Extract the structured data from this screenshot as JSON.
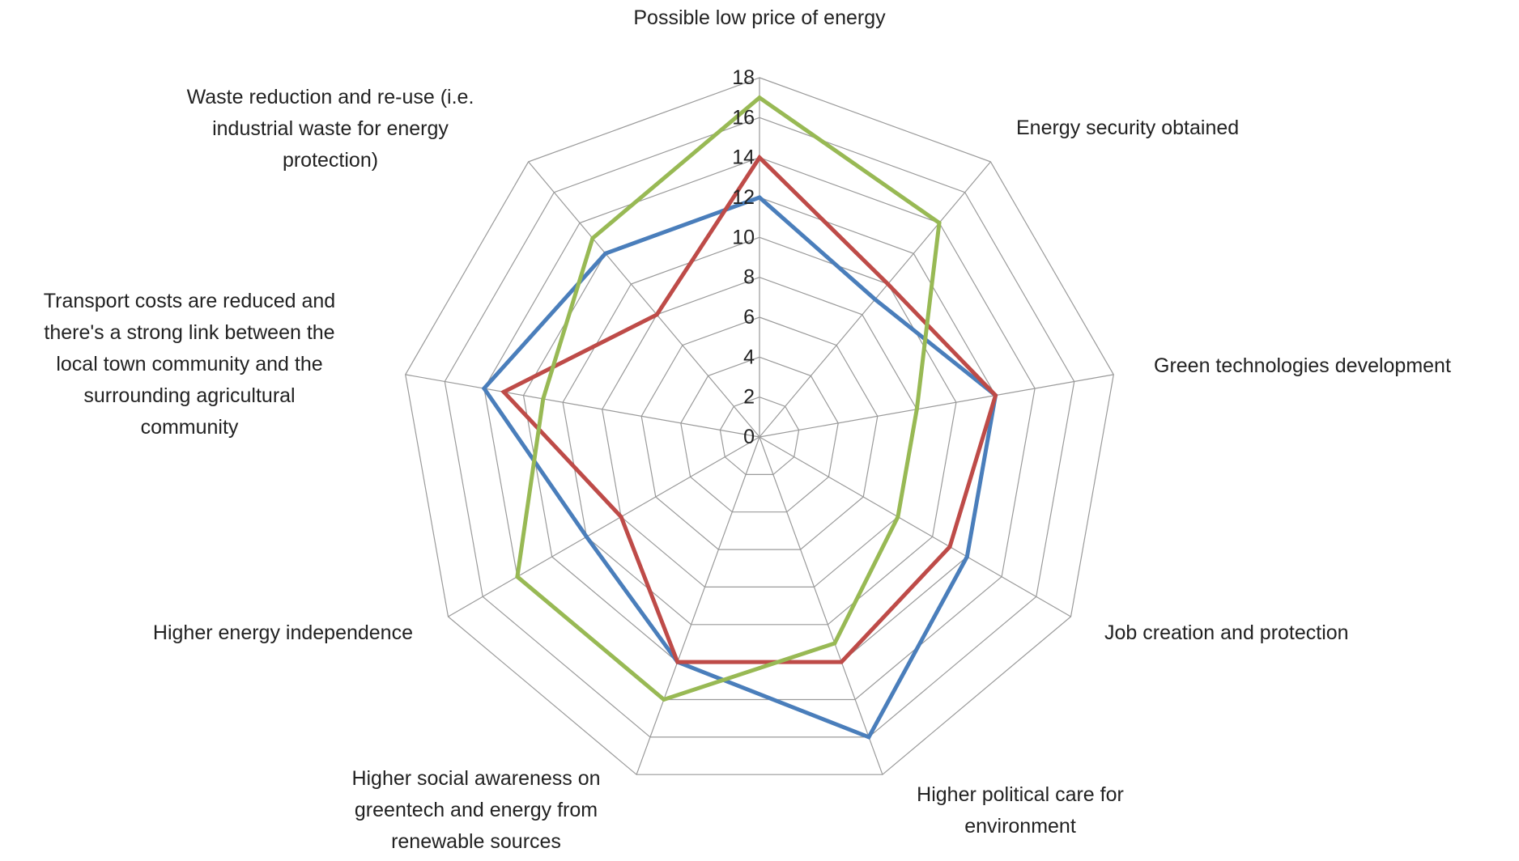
{
  "chart_data": {
    "type": "radar",
    "title": "",
    "categories": [
      "Possible low price of energy",
      "Energy security obtained",
      "Green technologies development",
      "Job creation and protection",
      "Higher political care for environment",
      "Higher social awareness on greentech and energy from renewable sources",
      "Higher energy independence",
      "Transport costs are reduced and there's a strong link between the local town community and the surrounding agricultural community",
      "Waste reduction and re-use (i.e. industrial waste for energy protection)"
    ],
    "category_label_lines": [
      [
        "Possible low price of energy"
      ],
      [
        "Energy security obtained"
      ],
      [
        "Green technologies development"
      ],
      [
        "Job creation and protection"
      ],
      [
        "Higher political care for",
        "environment"
      ],
      [
        "Higher social awareness on",
        "greentech and energy from",
        "renewable sources"
      ],
      [
        "Higher energy independence"
      ],
      [
        "Transport costs are reduced and",
        "there's a strong link between the",
        "local town community and the",
        "surrounding agricultural",
        "community"
      ],
      [
        "Waste reduction and re-use (i.e.",
        "industrial waste for energy",
        "protection)"
      ]
    ],
    "rlim": [
      0,
      18
    ],
    "ticks": [
      0,
      2,
      4,
      6,
      8,
      10,
      12,
      14,
      16,
      18
    ],
    "grid": true,
    "legend": "none",
    "series": [
      {
        "color": "#4a7ebb",
        "values": [
          12,
          9,
          12,
          12,
          16,
          12,
          10,
          14,
          12
        ]
      },
      {
        "color": "#be4b48",
        "values": [
          14,
          10,
          12,
          11,
          12,
          12,
          8,
          13,
          8
        ]
      },
      {
        "color": "#98b954",
        "values": [
          17,
          14,
          8,
          8,
          11,
          14,
          14,
          11,
          13
        ]
      }
    ]
  }
}
